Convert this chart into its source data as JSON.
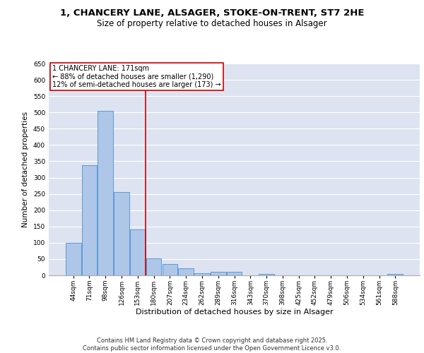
{
  "title1": "1, CHANCERY LANE, ALSAGER, STOKE-ON-TRENT, ST7 2HE",
  "title2": "Size of property relative to detached houses in Alsager",
  "xlabel": "Distribution of detached houses by size in Alsager",
  "ylabel": "Number of detached properties",
  "bar_color": "#aec6e8",
  "bar_edge_color": "#5b9bd5",
  "background_color": "#dde3f0",
  "grid_color": "#ffffff",
  "categories": [
    "44sqm",
    "71sqm",
    "98sqm",
    "126sqm",
    "153sqm",
    "180sqm",
    "207sqm",
    "234sqm",
    "262sqm",
    "289sqm",
    "316sqm",
    "343sqm",
    "370sqm",
    "398sqm",
    "425sqm",
    "452sqm",
    "479sqm",
    "506sqm",
    "534sqm",
    "561sqm",
    "588sqm"
  ],
  "values": [
    100,
    338,
    505,
    255,
    140,
    53,
    35,
    22,
    7,
    10,
    10,
    0,
    5,
    0,
    0,
    0,
    0,
    0,
    0,
    0,
    4
  ],
  "ylim": [
    0,
    650
  ],
  "yticks": [
    0,
    50,
    100,
    150,
    200,
    250,
    300,
    350,
    400,
    450,
    500,
    550,
    600,
    650
  ],
  "property_line_x": 4.5,
  "annotation_text": "1 CHANCERY LANE: 171sqm\n← 88% of detached houses are smaller (1,290)\n12% of semi-detached houses are larger (173) →",
  "annotation_box_color": "#ffffff",
  "annotation_border_color": "#cc0000",
  "vline_color": "#cc0000",
  "footer_text": "Contains HM Land Registry data © Crown copyright and database right 2025.\nContains public sector information licensed under the Open Government Licence v3.0.",
  "title1_fontsize": 9.5,
  "title2_fontsize": 8.5,
  "xlabel_fontsize": 8,
  "ylabel_fontsize": 7.5,
  "tick_fontsize": 6.5,
  "annotation_fontsize": 7,
  "footer_fontsize": 6
}
